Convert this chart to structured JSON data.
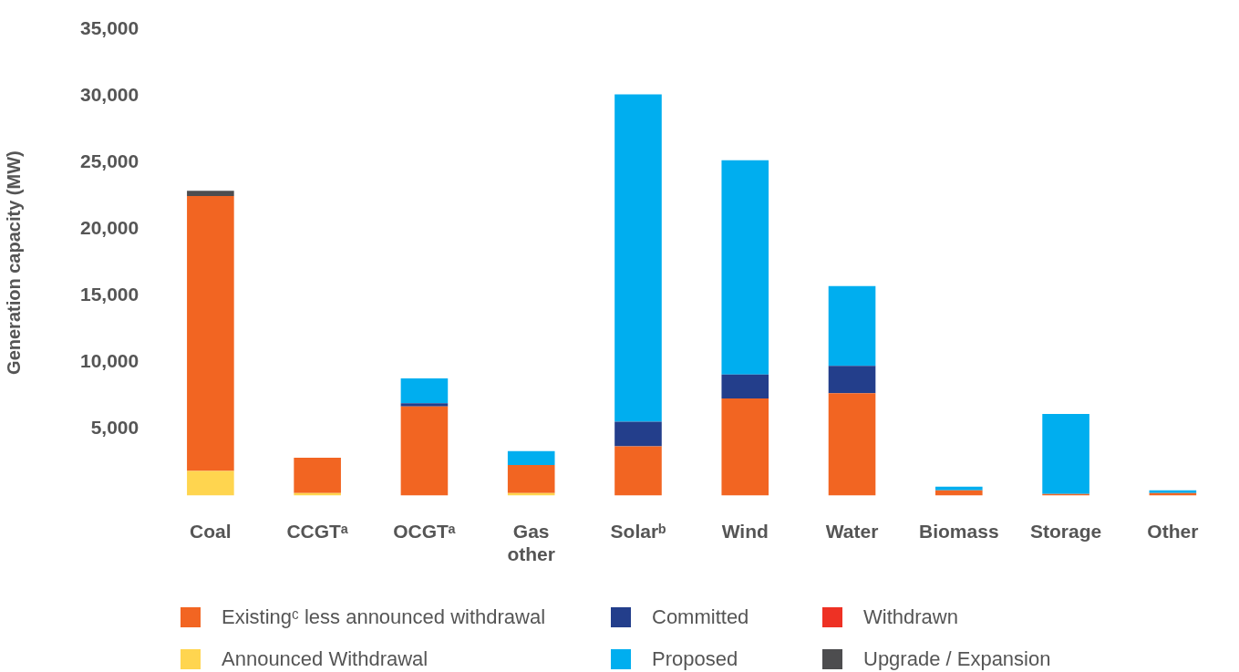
{
  "chart_data": {
    "type": "bar",
    "stacked": true,
    "ylabel": "Generation capacity (MW)",
    "categories": [
      "Coal",
      "CCGTᵃ",
      "OCGTᵃ",
      "Gas other",
      "Solarᵇ",
      "Wind",
      "Water",
      "Biomass",
      "Storage",
      "Other"
    ],
    "series": [
      {
        "name": "Announced Withdrawal",
        "color": "#ffd54f",
        "values": [
          1850,
          200,
          null,
          200,
          null,
          null,
          null,
          null,
          null,
          null
        ]
      },
      {
        "name": "Existingᶜ less announced withdrawal",
        "color": "#f26522",
        "values": [
          20650,
          2650,
          6700,
          2100,
          3700,
          7300,
          7700,
          400,
          130,
          200
        ]
      },
      {
        "name": "Withdrawn",
        "color": "#ee3124",
        "values": [
          null,
          null,
          null,
          null,
          null,
          null,
          null,
          null,
          null,
          null
        ]
      },
      {
        "name": "Committed",
        "color": "#233e8b",
        "values": [
          null,
          null,
          250,
          null,
          1850,
          1800,
          2050,
          null,
          null,
          null
        ]
      },
      {
        "name": "Proposed",
        "color": "#00aeef",
        "values": [
          null,
          null,
          1850,
          1050,
          24600,
          16100,
          6000,
          270,
          6000,
          200
        ]
      },
      {
        "name": "Upgrade / Expansion",
        "color": "#4d4d4f",
        "values": [
          400,
          null,
          null,
          null,
          null,
          null,
          null,
          null,
          null,
          null
        ]
      }
    ],
    "ylim": [
      0,
      35000
    ],
    "yticks": [
      {
        "value": 5000,
        "label": "5,000"
      },
      {
        "value": 10000,
        "label": "10,000"
      },
      {
        "value": 15000,
        "label": "15,000"
      },
      {
        "value": 20000,
        "label": "20,000"
      },
      {
        "value": 25000,
        "label": "25,000"
      },
      {
        "value": 30000,
        "label": "30,000"
      },
      {
        "value": 35000,
        "label": "35,000"
      }
    ],
    "grid": false,
    "legend": "bottom"
  }
}
